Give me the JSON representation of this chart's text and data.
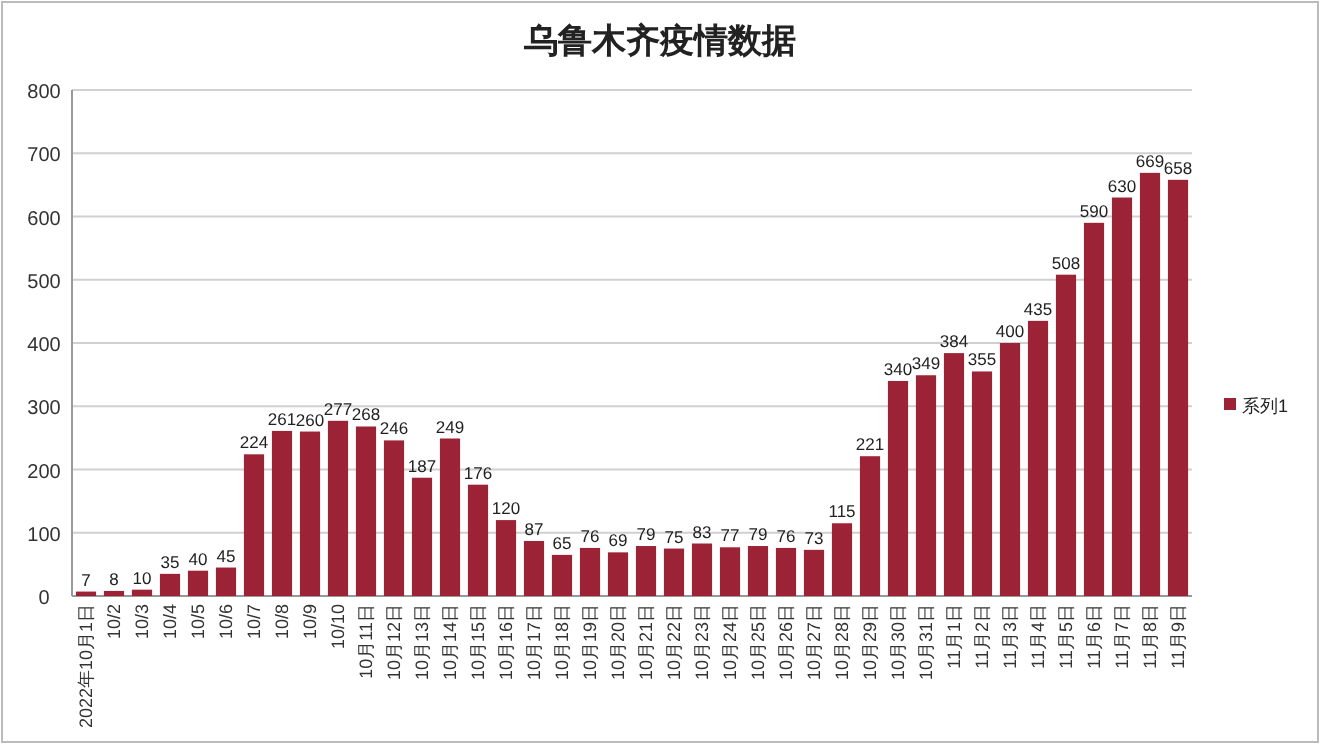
{
  "chart_data": {
    "type": "bar",
    "title": "乌鲁木齐疫情数据",
    "categories": [
      "2022年10月1日",
      "10/2",
      "10/3",
      "10/4",
      "10/5",
      "10/6",
      "10/7",
      "10/8",
      "10/9",
      "10/10",
      "10月11日",
      "10月12日",
      "10月13日",
      "10月14日",
      "10月15日",
      "10月16日",
      "10月17日",
      "10月18日",
      "10月19日",
      "10月20日",
      "10月21日",
      "10月22日",
      "10月23日",
      "10月24日",
      "10月25日",
      "10月26日",
      "10月27日",
      "10月28日",
      "10月29日",
      "10月30日",
      "10月31日",
      "11月1日",
      "11月2日",
      "11月3日",
      "11月4日",
      "11月5日",
      "11月6日",
      "11月7日",
      "11月8日",
      "11月9日"
    ],
    "series": [
      {
        "name": "系列1",
        "color": "#9b2335",
        "values": [
          7,
          8,
          10,
          35,
          40,
          45,
          224,
          261,
          260,
          277,
          268,
          246,
          187,
          249,
          176,
          120,
          87,
          65,
          76,
          69,
          79,
          75,
          83,
          77,
          79,
          76,
          73,
          115,
          221,
          340,
          349,
          384,
          355,
          400,
          435,
          508,
          590,
          630,
          669,
          658
        ]
      }
    ],
    "ylim": [
      0,
      800
    ],
    "yticks": [
      0,
      100,
      200,
      300,
      400,
      500,
      600,
      700,
      800
    ],
    "grid": "y",
    "legend": "right",
    "data_labels": true
  }
}
